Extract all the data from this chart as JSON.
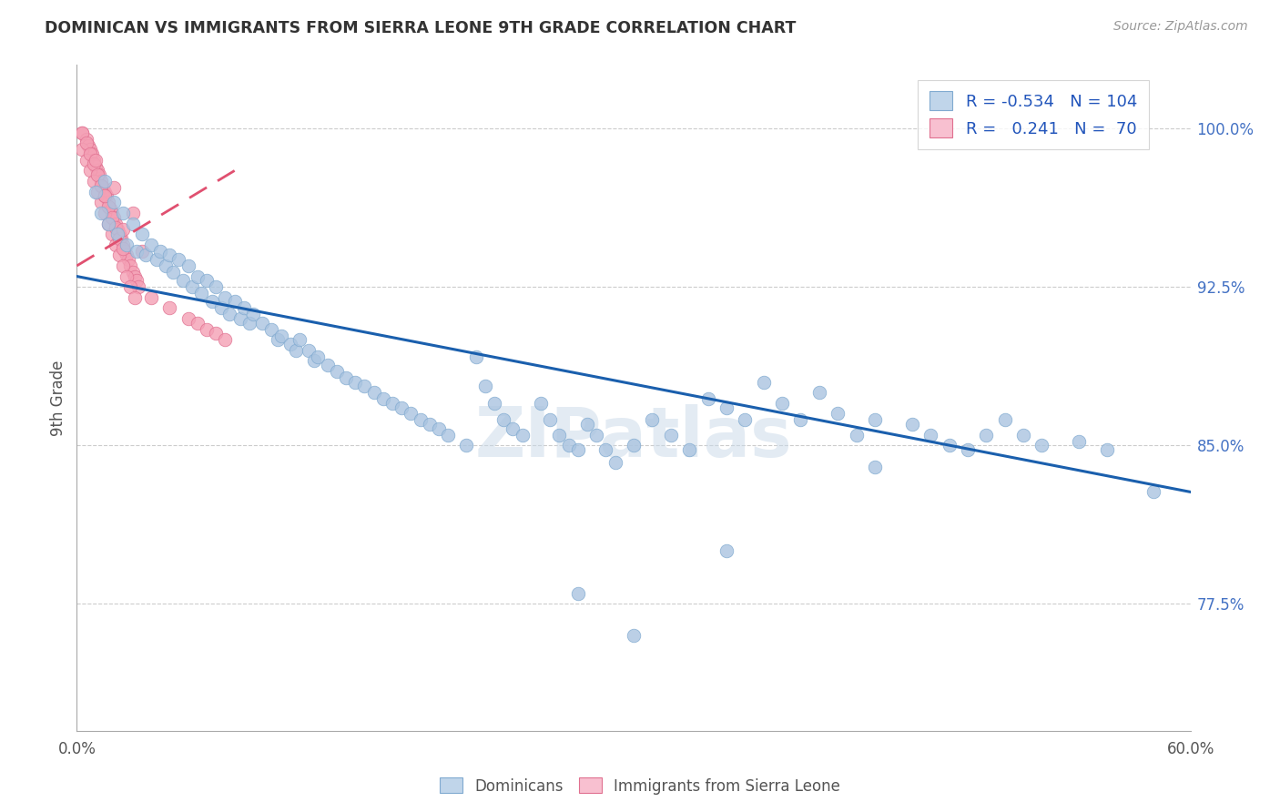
{
  "title": "DOMINICAN VS IMMIGRANTS FROM SIERRA LEONE 9TH GRADE CORRELATION CHART",
  "source": "Source: ZipAtlas.com",
  "ylabel": "9th Grade",
  "xlim": [
    0.0,
    0.6
  ],
  "ylim": [
    0.715,
    1.03
  ],
  "yticks": [
    0.775,
    0.85,
    0.925,
    1.0
  ],
  "ytick_labels": [
    "77.5%",
    "85.0%",
    "92.5%",
    "100.0%"
  ],
  "xticks": [
    0.0,
    0.1,
    0.2,
    0.3,
    0.4,
    0.5,
    0.6
  ],
  "xtick_labels": [
    "0.0%",
    "",
    "",
    "",
    "",
    "",
    "60.0%"
  ],
  "dominicans_color": "#aac4e0",
  "sierra_leone_color": "#f4a0b5",
  "trend_blue": "#1a5fad",
  "trend_pink": "#e05070",
  "legend_R_blue": "-0.534",
  "legend_N_blue": "104",
  "legend_R_pink": "0.241",
  "legend_N_pink": "70",
  "watermark": "ZIPatlas",
  "blue_trend_x": [
    0.0,
    0.6
  ],
  "blue_trend_y": [
    0.93,
    0.828
  ],
  "pink_trend_x": [
    0.0,
    0.085
  ],
  "pink_trend_y": [
    0.935,
    0.98
  ],
  "blue_scatter_x": [
    0.01,
    0.013,
    0.015,
    0.017,
    0.02,
    0.022,
    0.025,
    0.027,
    0.03,
    0.032,
    0.035,
    0.037,
    0.04,
    0.043,
    0.045,
    0.048,
    0.05,
    0.052,
    0.055,
    0.057,
    0.06,
    0.062,
    0.065,
    0.067,
    0.07,
    0.073,
    0.075,
    0.078,
    0.08,
    0.082,
    0.085,
    0.088,
    0.09,
    0.093,
    0.095,
    0.1,
    0.105,
    0.108,
    0.11,
    0.115,
    0.118,
    0.12,
    0.125,
    0.128,
    0.13,
    0.135,
    0.14,
    0.145,
    0.15,
    0.155,
    0.16,
    0.165,
    0.17,
    0.175,
    0.18,
    0.185,
    0.19,
    0.195,
    0.2,
    0.21,
    0.215,
    0.22,
    0.225,
    0.23,
    0.235,
    0.24,
    0.25,
    0.255,
    0.26,
    0.265,
    0.27,
    0.275,
    0.28,
    0.285,
    0.29,
    0.3,
    0.31,
    0.32,
    0.33,
    0.34,
    0.35,
    0.36,
    0.37,
    0.38,
    0.39,
    0.4,
    0.41,
    0.42,
    0.43,
    0.45,
    0.46,
    0.47,
    0.48,
    0.49,
    0.5,
    0.51,
    0.52,
    0.54,
    0.555,
    0.58,
    0.35,
    0.27,
    0.43,
    0.3
  ],
  "blue_scatter_y": [
    0.97,
    0.96,
    0.975,
    0.955,
    0.965,
    0.95,
    0.96,
    0.945,
    0.955,
    0.942,
    0.95,
    0.94,
    0.945,
    0.938,
    0.942,
    0.935,
    0.94,
    0.932,
    0.938,
    0.928,
    0.935,
    0.925,
    0.93,
    0.922,
    0.928,
    0.918,
    0.925,
    0.915,
    0.92,
    0.912,
    0.918,
    0.91,
    0.915,
    0.908,
    0.912,
    0.908,
    0.905,
    0.9,
    0.902,
    0.898,
    0.895,
    0.9,
    0.895,
    0.89,
    0.892,
    0.888,
    0.885,
    0.882,
    0.88,
    0.878,
    0.875,
    0.872,
    0.87,
    0.868,
    0.865,
    0.862,
    0.86,
    0.858,
    0.855,
    0.85,
    0.892,
    0.878,
    0.87,
    0.862,
    0.858,
    0.855,
    0.87,
    0.862,
    0.855,
    0.85,
    0.848,
    0.86,
    0.855,
    0.848,
    0.842,
    0.85,
    0.862,
    0.855,
    0.848,
    0.872,
    0.868,
    0.862,
    0.88,
    0.87,
    0.862,
    0.875,
    0.865,
    0.855,
    0.862,
    0.86,
    0.855,
    0.85,
    0.848,
    0.855,
    0.862,
    0.855,
    0.85,
    0.852,
    0.848,
    0.828,
    0.8,
    0.78,
    0.84,
    0.76
  ],
  "pink_scatter_x": [
    0.003,
    0.005,
    0.006,
    0.007,
    0.008,
    0.009,
    0.01,
    0.011,
    0.012,
    0.013,
    0.014,
    0.015,
    0.016,
    0.017,
    0.018,
    0.019,
    0.02,
    0.021,
    0.022,
    0.023,
    0.024,
    0.025,
    0.026,
    0.027,
    0.028,
    0.029,
    0.03,
    0.031,
    0.032,
    0.033,
    0.003,
    0.005,
    0.007,
    0.009,
    0.011,
    0.013,
    0.015,
    0.017,
    0.019,
    0.021,
    0.023,
    0.025,
    0.027,
    0.029,
    0.031,
    0.003,
    0.005,
    0.007,
    0.009,
    0.011,
    0.013,
    0.015,
    0.017,
    0.019,
    0.021,
    0.023,
    0.025,
    0.04,
    0.05,
    0.06,
    0.065,
    0.07,
    0.075,
    0.08,
    0.03,
    0.035,
    0.02,
    0.01,
    0.015,
    0.025
  ],
  "pink_scatter_y": [
    0.998,
    0.995,
    0.992,
    0.99,
    0.988,
    0.985,
    0.982,
    0.98,
    0.978,
    0.975,
    0.972,
    0.97,
    0.968,
    0.965,
    0.962,
    0.96,
    0.958,
    0.955,
    0.952,
    0.95,
    0.948,
    0.945,
    0.942,
    0.94,
    0.938,
    0.935,
    0.932,
    0.93,
    0.928,
    0.925,
    0.99,
    0.985,
    0.98,
    0.975,
    0.97,
    0.965,
    0.96,
    0.955,
    0.95,
    0.945,
    0.94,
    0.935,
    0.93,
    0.925,
    0.92,
    0.998,
    0.993,
    0.988,
    0.983,
    0.978,
    0.973,
    0.968,
    0.963,
    0.958,
    0.953,
    0.948,
    0.943,
    0.92,
    0.915,
    0.91,
    0.908,
    0.905,
    0.903,
    0.9,
    0.96,
    0.942,
    0.972,
    0.985,
    0.968,
    0.952
  ]
}
